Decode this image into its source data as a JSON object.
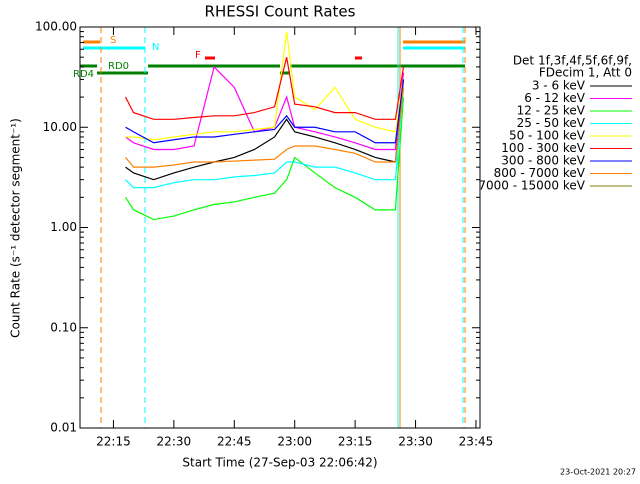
{
  "chart_data": {
    "type": "line",
    "title": "RHESSI Count Rates",
    "x_label": "Start Time (27-Sep-03 22:06:42)",
    "y_label": "Count Rate (s⁻¹ detector segment⁻¹)",
    "log_y": true,
    "xlim": [
      "22:06:42",
      "23:46"
    ],
    "xticks": [
      "22:15",
      "22:30",
      "22:45",
      "23:00",
      "23:15",
      "23:30",
      "23:45"
    ],
    "ylim": [
      0.01,
      100
    ],
    "yticks": [
      {
        "value": 0.01,
        "label": "0.01"
      },
      {
        "value": 0.1,
        "label": "0.10"
      },
      {
        "value": 1,
        "label": "1.00"
      },
      {
        "value": 10,
        "label": "10.00"
      },
      {
        "value": 100,
        "label": "100.00"
      }
    ],
    "legend_header": [
      "Det 1f,3f,4f,5f,6f,9f,",
      "FDecim 1, Att 0"
    ],
    "annotations": [
      "S",
      "N",
      "F",
      "RD0",
      "RD4"
    ],
    "footer": "23-Oct-2021 20:27",
    "x": [
      "22:18",
      "22:20",
      "22:25",
      "22:30",
      "22:35",
      "22:40",
      "22:45",
      "22:50",
      "22:55",
      "22:58",
      "23:00",
      "23:05",
      "23:10",
      "23:15",
      "23:20",
      "23:25",
      "23:27"
    ],
    "series": [
      {
        "name": "3 - 6 keV",
        "color": "#000000",
        "values": [
          4,
          3.5,
          3,
          3.5,
          4,
          4.5,
          5,
          6,
          8,
          12,
          9,
          8,
          7,
          6,
          5,
          4.5,
          30
        ]
      },
      {
        "name": "6 - 12 keV",
        "color": "#ff00ff",
        "values": [
          8,
          7,
          6,
          6,
          6.5,
          40,
          25,
          9,
          10,
          20,
          10,
          9,
          8,
          7,
          6,
          6,
          35
        ]
      },
      {
        "name": "12 - 25 keV",
        "color": "#00ff00",
        "values": [
          2,
          1.5,
          1.2,
          1.3,
          1.5,
          1.7,
          1.8,
          2,
          2.2,
          3,
          5,
          3.5,
          2.5,
          2,
          1.5,
          1.5,
          20
        ]
      },
      {
        "name": "25 - 50 keV",
        "color": "#00ffff",
        "values": [
          3,
          2.5,
          2.5,
          2.8,
          3,
          3,
          3.2,
          3.3,
          3.5,
          4.5,
          4.5,
          4,
          4,
          3.5,
          3,
          3,
          25
        ]
      },
      {
        "name": "50 - 100 keV",
        "color": "#ffff00",
        "values": [
          8,
          8,
          7.5,
          8,
          8.5,
          9,
          9,
          9.5,
          10,
          90,
          20,
          15,
          25,
          12,
          10,
          9,
          30
        ]
      },
      {
        "name": "100 - 300 keV",
        "color": "#ff0000",
        "values": [
          20,
          14,
          12,
          12,
          12.5,
          13,
          13,
          14,
          16,
          50,
          17,
          16,
          14,
          14,
          12,
          12,
          40
        ]
      },
      {
        "name": "300 - 800 keV",
        "color": "#0000ff",
        "values": [
          10,
          9,
          7,
          7.5,
          8,
          8,
          8.5,
          9,
          9.5,
          13,
          10,
          10,
          9,
          9,
          7,
          7,
          30
        ]
      },
      {
        "name": "800 - 7000 keV",
        "color": "#ff8000",
        "values": [
          5,
          4,
          4,
          4.2,
          4.5,
          4.5,
          4.6,
          4.7,
          4.8,
          6,
          6.5,
          6.5,
          6,
          5.5,
          4.5,
          4.5,
          25
        ]
      },
      {
        "name": "7000 - 15000 keV",
        "color": "#808000",
        "values": [
          null,
          null,
          null,
          null,
          null,
          null,
          null,
          null,
          null,
          null,
          null,
          null,
          null,
          null,
          null,
          null,
          null
        ]
      }
    ]
  }
}
